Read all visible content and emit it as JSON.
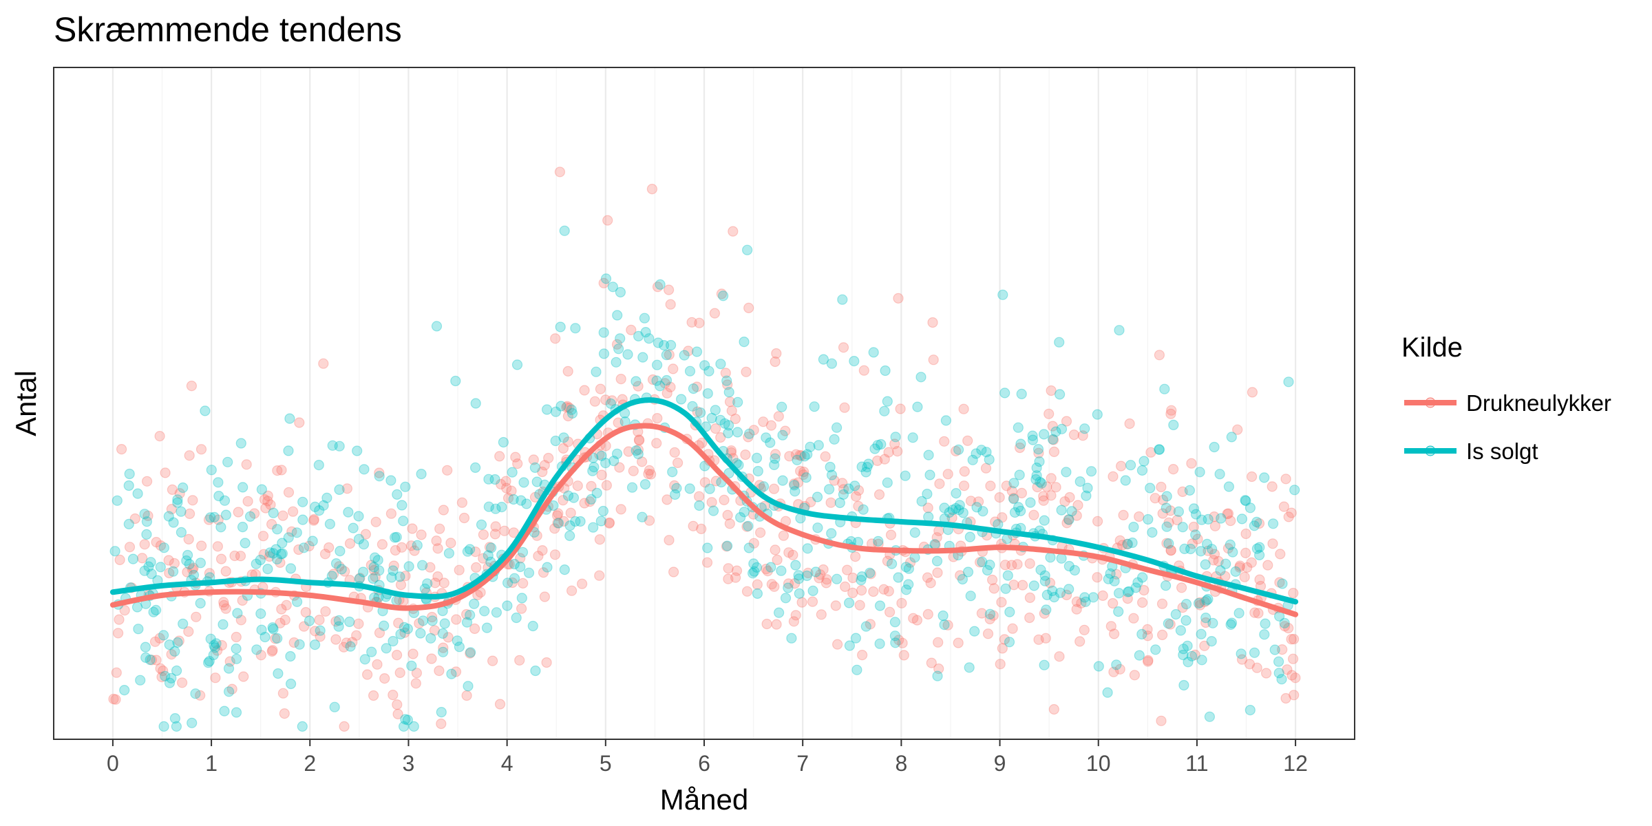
{
  "chart_data": {
    "type": "scatter",
    "title": "Skræmmende tendens",
    "xlabel": "Måned",
    "ylabel": "Antal",
    "xlim": [
      -0.6,
      12.6
    ],
    "ylim": [
      -0.05,
      1.0
    ],
    "x_ticks": [
      0,
      1,
      2,
      3,
      4,
      5,
      6,
      7,
      8,
      9,
      10,
      11,
      12
    ],
    "y_ticks_shown": false,
    "grid": true,
    "theme": "bw",
    "legend": {
      "title": "Kilde",
      "position": "right"
    },
    "series": [
      {
        "name": "Drukneulykker",
        "color": "#F8766D",
        "smooth": {
          "x": [
            0,
            0.5,
            1,
            1.5,
            2,
            2.5,
            3,
            3.5,
            4,
            4.5,
            5,
            5.4,
            5.8,
            6.2,
            6.6,
            7,
            7.5,
            8,
            8.5,
            9,
            9.5,
            10,
            10.5,
            11,
            11.5,
            12
          ],
          "y": [
            0.16,
            0.175,
            0.18,
            0.18,
            0.175,
            0.165,
            0.155,
            0.17,
            0.23,
            0.34,
            0.42,
            0.44,
            0.42,
            0.36,
            0.3,
            0.27,
            0.25,
            0.245,
            0.245,
            0.25,
            0.245,
            0.235,
            0.215,
            0.195,
            0.17,
            0.145
          ]
        },
        "points": {
          "count": 750,
          "y_spread": 0.16,
          "seed": 11
        }
      },
      {
        "name": "Is solgt",
        "color": "#00BFC4",
        "smooth": {
          "x": [
            0,
            0.5,
            1,
            1.5,
            2,
            2.5,
            3,
            3.5,
            4,
            4.5,
            5,
            5.4,
            5.8,
            6.2,
            6.6,
            7,
            7.5,
            8,
            8.5,
            9,
            9.5,
            10,
            10.5,
            11,
            11.5,
            12
          ],
          "y": [
            0.18,
            0.19,
            0.195,
            0.2,
            0.195,
            0.19,
            0.175,
            0.18,
            0.24,
            0.36,
            0.45,
            0.48,
            0.46,
            0.39,
            0.33,
            0.305,
            0.295,
            0.29,
            0.285,
            0.275,
            0.265,
            0.25,
            0.23,
            0.205,
            0.185,
            0.165
          ]
        },
        "points": {
          "count": 750,
          "y_spread": 0.17,
          "seed": 29
        }
      }
    ]
  }
}
